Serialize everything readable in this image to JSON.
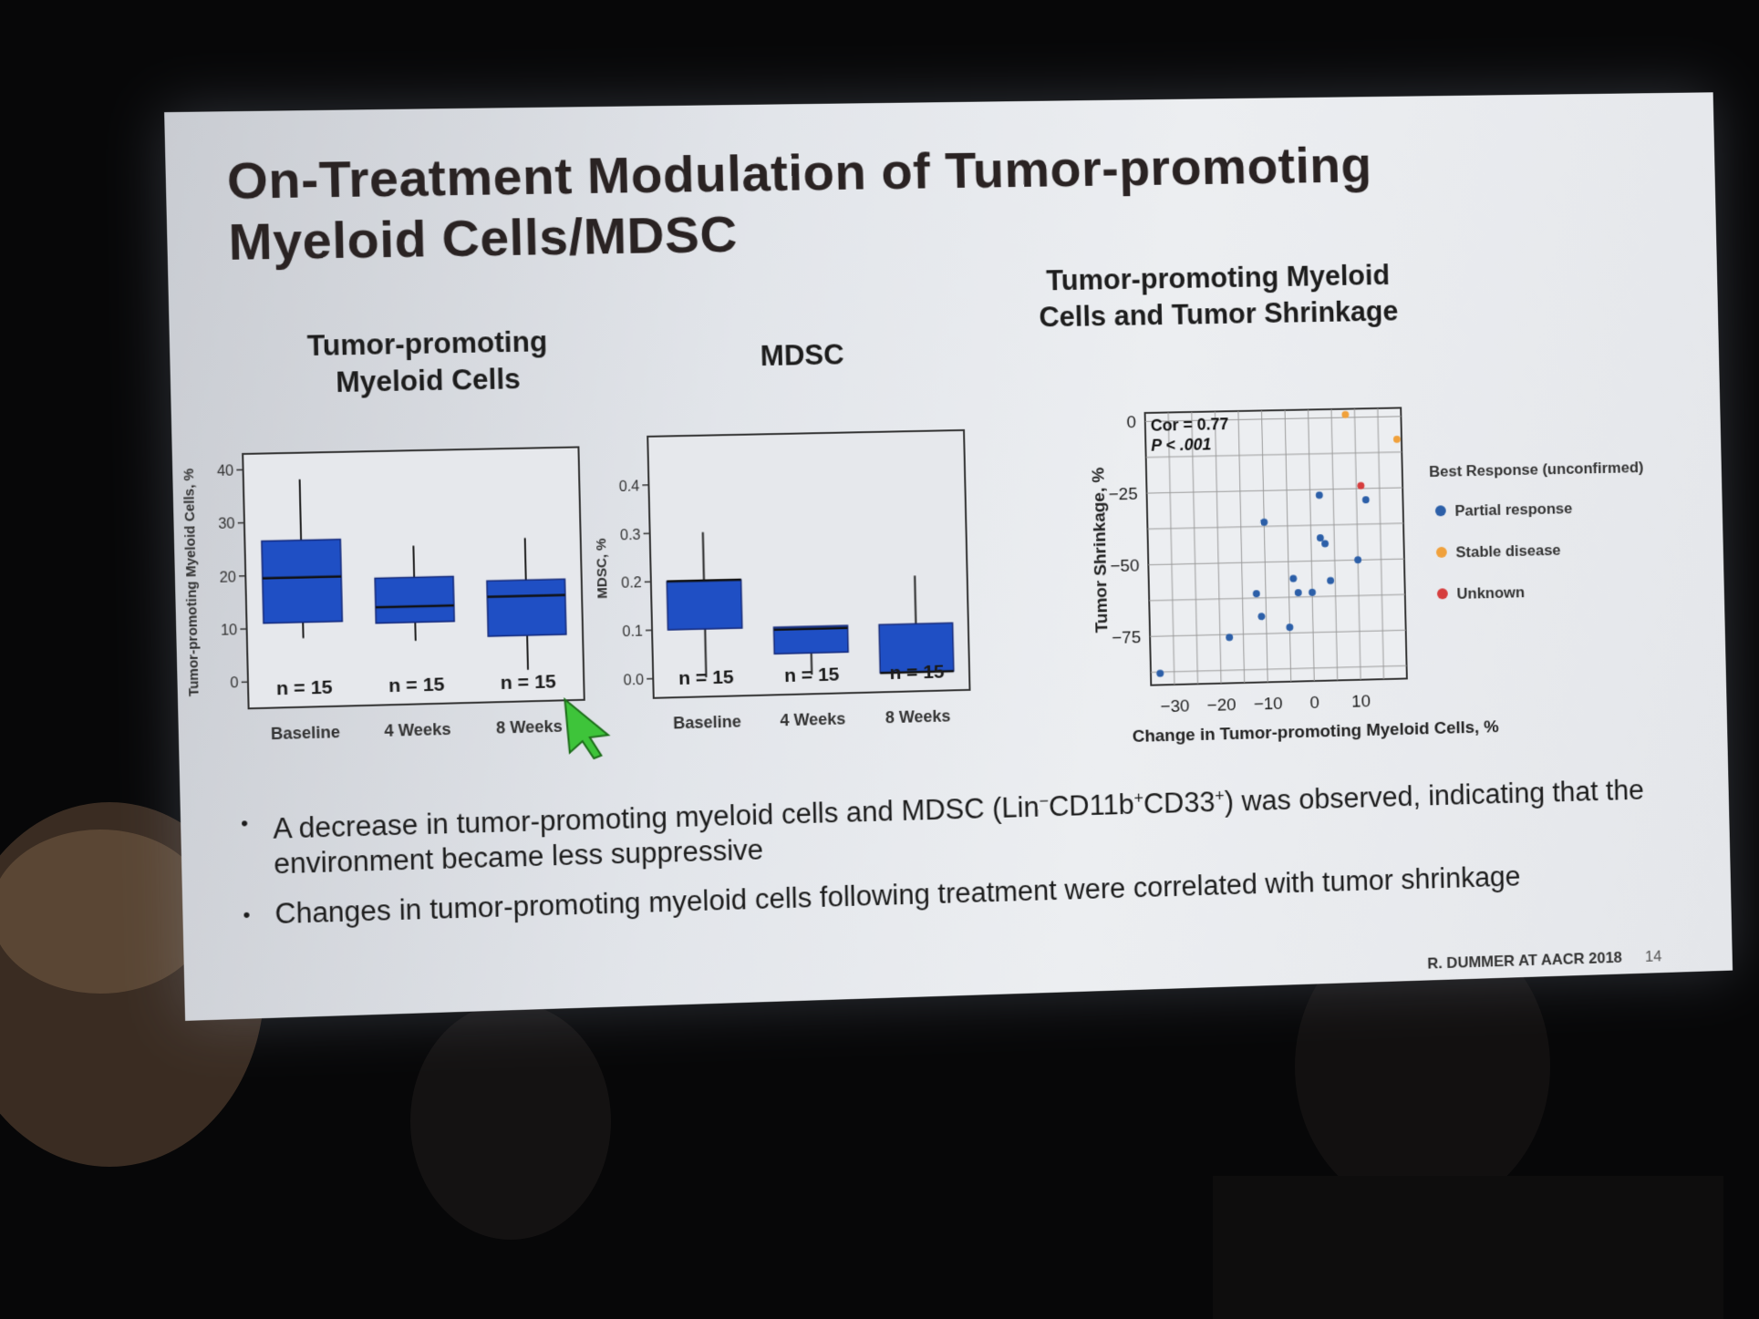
{
  "slide": {
    "title_line1": "On-Treatment Modulation of Tumor-promoting",
    "title_line2": "Myeloid Cells/MDSC",
    "bullets": [
      {
        "pre": "A decrease in tumor-promoting myeloid cells and MDSC (Lin",
        "sup1": "−",
        "mid1": "CD11b",
        "sup2": "+",
        "mid2": "CD33",
        "sup3": "+",
        "post": ") was observed, indicating that the environment became less suppressive"
      },
      {
        "text": "Changes in tumor-promoting myeloid cells following treatment were correlated with tumor shrinkage"
      }
    ],
    "footer": "R. DUMMER AT AACR 2018",
    "page_number": "14",
    "bullet_glyph": "•"
  },
  "chart_data": [
    {
      "type": "box",
      "title": "Tumor-promoting Myeloid Cells",
      "ylabel": "Tumor-promoting Myeloid Cells, %",
      "ylim": [
        -5,
        43
      ],
      "yticks": [
        0,
        10,
        20,
        30,
        40
      ],
      "categories": [
        "Baseline",
        "4 Weeks",
        "8 Weeks"
      ],
      "n_labels": [
        "n = 15",
        "n = 15",
        "n = 15"
      ],
      "boxes": [
        {
          "min": 8,
          "q1": 11,
          "median": 19.5,
          "q3": 26.5,
          "max": 38
        },
        {
          "min": 7,
          "q1": 10.5,
          "median": 13.5,
          "q3": 19,
          "max": 25
        },
        {
          "min": 1,
          "q1": 7.5,
          "median": 15,
          "q3": 18,
          "max": 26
        }
      ],
      "color": "#1f4fc4"
    },
    {
      "type": "box",
      "title": "MDSC",
      "ylabel": "MDSC, %",
      "ylim": [
        -0.04,
        0.5
      ],
      "yticks": [
        0.0,
        0.1,
        0.2,
        0.3,
        0.4
      ],
      "tick_labels": [
        "0.0",
        "0.1",
        "0.2",
        "0.3",
        "0.4"
      ],
      "categories": [
        "Baseline",
        "4 Weeks",
        "8 Weeks"
      ],
      "n_labels": [
        "n = 15",
        "n = 15",
        "n = 15"
      ],
      "boxes": [
        {
          "min": 0.0,
          "q1": 0.1,
          "median": 0.2,
          "q3": 0.2,
          "max": 0.3
        },
        {
          "min": 0.0,
          "q1": 0.045,
          "median": 0.095,
          "q3": 0.1,
          "max": 0.1
        },
        {
          "min": 0.0,
          "q1": 0.0,
          "median": 0.0,
          "q3": 0.1,
          "max": 0.2
        }
      ],
      "color": "#1f4fc4"
    },
    {
      "type": "scatter",
      "title": "Tumor-promoting Myeloid Cells and Tumor Shrinkage",
      "xlabel": "Change in Tumor-promoting Myeloid Cells, %",
      "ylabel": "Tumor Shrinkage, %",
      "xlim": [
        -35,
        20
      ],
      "ylim": [
        -92,
        3
      ],
      "xticks": [
        -30,
        -20,
        -10,
        0,
        10
      ],
      "xtick_labels": [
        "−30",
        "−20",
        "−10",
        "0",
        "10"
      ],
      "yticks": [
        0,
        -25,
        -50,
        -75
      ],
      "ytick_labels": [
        "0",
        "−25",
        "−50",
        "−75"
      ],
      "grid": true,
      "annotations": [
        "Cor = 0.77",
        "P < .001"
      ],
      "legend": {
        "title": "Best Response (unconfirmed)",
        "placement": "right",
        "entries": [
          {
            "name": "Partial response",
            "color": "#2c5fa8"
          },
          {
            "name": "Stable disease",
            "color": "#f0a13c"
          },
          {
            "name": "Unknown",
            "color": "#d63d3d"
          }
        ]
      },
      "series": [
        {
          "name": "Partial response",
          "color": "#2c5fa8",
          "points": [
            [
              -33,
              -88
            ],
            [
              -18,
              -76
            ],
            [
              -12,
              -61
            ],
            [
              -11,
              -69
            ],
            [
              -10,
              -36
            ],
            [
              -5,
              -73
            ],
            [
              -4,
              -56
            ],
            [
              -3,
              -61
            ],
            [
              0,
              -61
            ],
            [
              2,
              -27
            ],
            [
              2,
              -42
            ],
            [
              3,
              -44
            ],
            [
              4,
              -57
            ],
            [
              10,
              -50
            ],
            [
              12,
              -29
            ]
          ]
        },
        {
          "name": "Stable disease",
          "color": "#f0a13c",
          "points": [
            [
              8,
              1
            ],
            [
              19,
              -8
            ]
          ]
        },
        {
          "name": "Unknown",
          "color": "#d63d3d",
          "points": [
            [
              11,
              -24
            ]
          ]
        }
      ]
    }
  ]
}
